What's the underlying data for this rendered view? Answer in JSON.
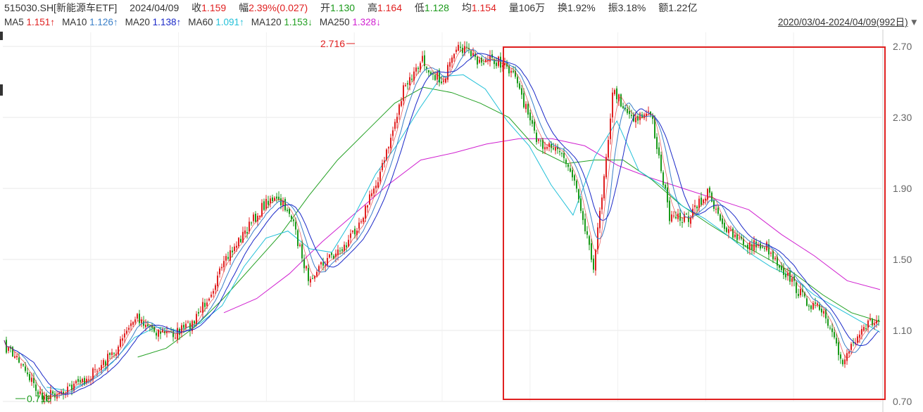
{
  "header": {
    "code_name": "515030.SH[新能源车ETF]",
    "date": "2024/04/09",
    "close_label": "收",
    "close": "1.159",
    "change_label": "幅",
    "change": "2.39%(0.027)",
    "open_label": "开",
    "open": "1.130",
    "high_label": "高",
    "high": "1.164",
    "low_label": "低",
    "low": "1.128",
    "avg_label": "均",
    "avg": "1.154",
    "volume_label": "量",
    "volume": "106万",
    "turnover_label": "换",
    "turnover": "1.92%",
    "amplitude_label": "振",
    "amplitude": "3.18%",
    "amount_label": "额",
    "amount": "1.22亿"
  },
  "ma_legend": [
    {
      "label": "MA5",
      "value": "1.151↑",
      "color": "#e02020"
    },
    {
      "label": "MA10",
      "value": "1.126↑",
      "color": "#3a7fc8"
    },
    {
      "label": "MA20",
      "value": "1.138↑",
      "color": "#1a28c8"
    },
    {
      "label": "MA60",
      "value": "1.091↑",
      "color": "#22c0d8"
    },
    {
      "label": "MA120",
      "value": "1.153↓",
      "color": "#22a022"
    },
    {
      "label": "MA250",
      "value": "1.328↓",
      "color": "#d020d0"
    }
  ],
  "date_range": "2020/03/04-2024/04/09(992日)",
  "chart_data": {
    "type": "line",
    "x_range": [
      "2020/03/04",
      "2024/04/09"
    ],
    "y_ticks": [
      "2.70",
      "2.30",
      "1.90",
      "1.50",
      "1.10",
      "0.70"
    ],
    "ylim": [
      0.7,
      2.7
    ],
    "annotations": [
      {
        "text": "2.716",
        "kind": "high",
        "value": 2.716
      },
      {
        "text": "0.716",
        "kind": "low",
        "value": 0.716
      }
    ],
    "colors": {
      "up": "#e02020",
      "down": "#1a9a1a",
      "highlight_box": "#e02020",
      "grid": "#e8e8e8"
    },
    "series": [
      {
        "key": "price",
        "values": [
          1.02,
          0.92,
          0.72,
          0.76,
          0.8,
          0.88,
          1.0,
          1.18,
          1.1,
          1.08,
          1.14,
          1.34,
          1.55,
          1.7,
          1.85,
          1.78,
          1.4,
          1.5,
          1.58,
          1.78,
          2.05,
          2.45,
          2.62,
          2.5,
          2.7,
          2.62,
          2.62,
          2.5,
          2.15,
          2.15,
          1.95,
          1.46,
          2.45,
          2.3,
          2.32,
          1.72,
          1.74,
          1.88,
          1.65,
          1.58,
          1.58,
          1.43,
          1.28,
          1.2,
          0.92,
          1.12,
          1.16
        ]
      },
      {
        "key": "ma60",
        "values": [
          null,
          null,
          0.78,
          0.76,
          0.82,
          0.92,
          1.06,
          1.12,
          1.1,
          1.14,
          1.24,
          1.46,
          1.62,
          1.66,
          1.56,
          1.54,
          1.74,
          1.98,
          2.15,
          2.35,
          2.53,
          2.54,
          2.46,
          2.28,
          2.14,
          1.92,
          1.75,
          2.08,
          2.28,
          2.0,
          1.92,
          1.8,
          1.73,
          1.64,
          1.54,
          1.46,
          1.4,
          1.3,
          1.23,
          1.16,
          1.09
        ]
      },
      {
        "key": "ma120",
        "values": [
          null,
          0.95,
          1.0,
          1.12,
          1.28,
          1.46,
          1.64,
          1.86,
          2.06,
          2.22,
          2.38,
          2.47,
          2.44,
          2.38,
          2.3,
          2.12,
          2.04,
          2.06,
          2.06,
          1.95,
          1.81,
          1.7,
          1.6,
          1.51,
          1.42,
          1.3,
          1.2,
          1.15
        ]
      },
      {
        "key": "ma250",
        "values": [
          1.2,
          1.28,
          1.42,
          1.6,
          1.76,
          1.92,
          2.06,
          2.1,
          2.15,
          2.18,
          2.18,
          2.14,
          2.03,
          1.96,
          1.9,
          1.84,
          1.78,
          1.64,
          1.52,
          1.38,
          1.33
        ]
      }
    ]
  }
}
